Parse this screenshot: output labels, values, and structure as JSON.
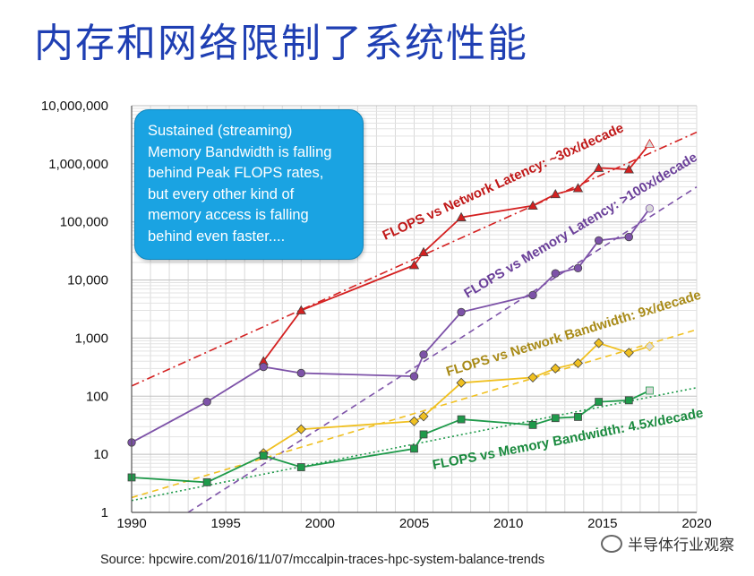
{
  "slide": {
    "title": "内存和网络限制了系统性能",
    "callout": "Sustained (streaming)\nMemory Bandwidth is falling\nbehind Peak FLOPS rates,\nbut every other kind of\nmemory access is falling\nbehind even faster....",
    "source": "Source: hpcwire.com/2016/11/07/mccalpin-traces-hpc-system-balance-trends",
    "watermark": "半导体行业观察"
  },
  "chart_data": {
    "type": "line",
    "y_scale": "log",
    "xlim": [
      1990,
      2020
    ],
    "ylim": [
      1,
      10000000
    ],
    "grid": true,
    "x_ticks": [
      "1990",
      "1995",
      "2000",
      "2005",
      "2010",
      "2015",
      "2020"
    ],
    "y_ticks": [
      "1",
      "10",
      "100",
      "1,000",
      "10,000",
      "100,000",
      "1,000,000",
      "10,000,000"
    ],
    "colors": {
      "network_latency": "#d42020",
      "memory_latency": "#7d52a8",
      "network_bandwidth": "#f0c020",
      "memory_bandwidth": "#1e9a4a"
    },
    "series": [
      {
        "key": "network_latency",
        "marker": "triangle",
        "points": [
          [
            1997,
            400
          ],
          [
            1999,
            3000
          ],
          [
            2005,
            18000
          ],
          [
            2005.5,
            30000
          ],
          [
            2007.5,
            120000
          ],
          [
            2011.3,
            190000
          ],
          [
            2012.5,
            300000
          ],
          [
            2013.7,
            380000
          ],
          [
            2014.8,
            850000
          ],
          [
            2016.4,
            800000
          ],
          [
            2017.5,
            2200000
          ]
        ]
      },
      {
        "key": "memory_latency",
        "marker": "circle",
        "points": [
          [
            1990,
            16
          ],
          [
            1994,
            80
          ],
          [
            1997,
            320
          ],
          [
            1999,
            250
          ],
          [
            2005,
            220
          ],
          [
            2005.5,
            520
          ],
          [
            2007.5,
            2800
          ],
          [
            2011.3,
            5500
          ],
          [
            2012.5,
            13000
          ],
          [
            2013.7,
            16000
          ],
          [
            2014.8,
            48000
          ],
          [
            2016.4,
            55000
          ],
          [
            2017.5,
            170000
          ]
        ]
      },
      {
        "key": "network_bandwidth",
        "marker": "diamond",
        "points": [
          [
            1997,
            10.5
          ],
          [
            1999,
            27
          ],
          [
            2005,
            37
          ],
          [
            2005.5,
            45
          ],
          [
            2007.5,
            170
          ],
          [
            2011.3,
            210
          ],
          [
            2012.5,
            300
          ],
          [
            2013.7,
            370
          ],
          [
            2014.8,
            820
          ],
          [
            2016.4,
            560
          ],
          [
            2017.5,
            720
          ]
        ]
      },
      {
        "key": "memory_bandwidth",
        "marker": "square",
        "points": [
          [
            1990,
            4
          ],
          [
            1994,
            3.3
          ],
          [
            1997,
            9.5
          ],
          [
            1999,
            6
          ],
          [
            2005,
            12.5
          ],
          [
            2005.5,
            22
          ],
          [
            2007.5,
            40
          ],
          [
            2011.3,
            32
          ],
          [
            2012.5,
            42
          ],
          [
            2013.7,
            44
          ],
          [
            2014.8,
            80
          ],
          [
            2016.4,
            85
          ],
          [
            2017.5,
            125
          ]
        ]
      }
    ],
    "trends": [
      {
        "key": "network_latency",
        "label": "FLOPS vs Network Latency: ~30x/decade",
        "style": "dashdot",
        "from": [
          1990,
          150
        ],
        "to": [
          2020,
          3500000
        ]
      },
      {
        "key": "memory_latency",
        "label": "FLOPS vs Memory Latency: >100x/decade",
        "style": "dashed",
        "from": [
          1993,
          1
        ],
        "to": [
          2020,
          400000
        ]
      },
      {
        "key": "network_bandwidth",
        "label": "FLOPS vs Network Bandwidth: 9x/decade",
        "style": "dashed",
        "from": [
          1990,
          1.8
        ],
        "to": [
          2020,
          1400
        ]
      },
      {
        "key": "memory_bandwidth",
        "label": "FLOPS vs Memory Bandwidth: 4.5x/decade",
        "style": "dotted",
        "from": [
          1990,
          1.6
        ],
        "to": [
          2020,
          140
        ]
      }
    ]
  }
}
